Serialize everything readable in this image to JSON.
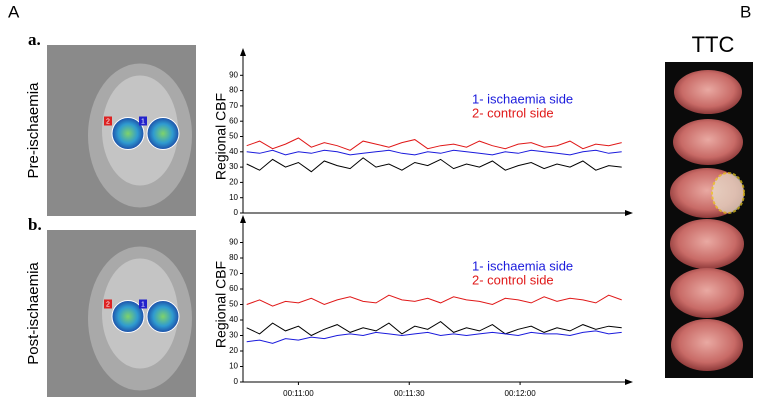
{
  "panel_labels": [
    "A",
    "B"
  ],
  "ttc_label": "TTC",
  "chart_data": [
    {
      "type": "line",
      "label": "a.",
      "image_label": "Pre-ischaemia",
      "roi_labels": [
        "2",
        "1"
      ],
      "ylabel": "Regional CBF",
      "legend": "upper right",
      "xlim": [
        645,
        748.4
      ],
      "ylim": [
        0,
        100
      ],
      "yticks": [
        0,
        10,
        20,
        30,
        40,
        50,
        60,
        70,
        80,
        90
      ],
      "x": [
        646,
        649.5,
        653,
        656.5,
        660,
        663.5,
        667,
        670.5,
        674,
        677.5,
        681,
        684.5,
        688,
        691.5,
        695,
        698.5,
        702,
        705.5,
        709,
        712.5,
        716,
        719.5,
        723,
        726.5,
        730,
        733.5,
        737,
        740.5,
        744,
        747.5
      ],
      "series": [
        {
          "color": "#000000",
          "values": [
            32,
            28,
            35,
            30,
            33,
            27,
            34,
            31,
            29,
            36,
            30,
            32,
            28,
            33,
            31,
            35,
            29,
            32,
            30,
            34,
            28,
            31,
            33,
            29,
            32,
            30,
            34,
            28,
            31,
            30
          ]
        },
        {
          "name": "1- ischaemia side",
          "color": "#1a1adc",
          "values": [
            40,
            39,
            41,
            38,
            40,
            39,
            41,
            40,
            38,
            39,
            40,
            41,
            39,
            38,
            40,
            39,
            41,
            40,
            39,
            38,
            40,
            39,
            41,
            40,
            39,
            38,
            40,
            41,
            39,
            40
          ]
        },
        {
          "name": "2- control side",
          "color": "#e01818",
          "values": [
            44,
            47,
            42,
            45,
            49,
            43,
            46,
            44,
            41,
            47,
            45,
            43,
            46,
            48,
            42,
            44,
            45,
            43,
            47,
            44,
            42,
            45,
            46,
            43,
            44,
            47,
            42,
            45,
            44,
            46
          ]
        }
      ]
    },
    {
      "type": "line",
      "label": "b.",
      "image_label": "Post-ischaemia",
      "roi_labels": [
        "2",
        "1"
      ],
      "ylabel": "Regional CBF",
      "legend": "upper right",
      "xlim": [
        645,
        748.4
      ],
      "ylim": [
        0,
        100
      ],
      "yticks": [
        0,
        10,
        20,
        30,
        40,
        50,
        60,
        70,
        80,
        90
      ],
      "xticks": [
        {
          "value": 660,
          "label": "00:11:00"
        },
        {
          "value": 690,
          "label": "00:11:30"
        },
        {
          "value": 720,
          "label": "00:12:00"
        }
      ],
      "x": [
        646,
        649.5,
        653,
        656.5,
        660,
        663.5,
        667,
        670.5,
        674,
        677.5,
        681,
        684.5,
        688,
        691.5,
        695,
        698.5,
        702,
        705.5,
        709,
        712.5,
        716,
        719.5,
        723,
        726.5,
        730,
        733.5,
        737,
        740.5,
        744,
        747.5
      ],
      "series": [
        {
          "color": "#000000",
          "values": [
            35,
            31,
            38,
            33,
            36,
            30,
            34,
            37,
            32,
            35,
            33,
            38,
            31,
            36,
            34,
            39,
            32,
            35,
            33,
            37,
            31,
            34,
            36,
            32,
            35,
            33,
            37,
            34,
            36,
            35
          ]
        },
        {
          "name": "1- ischaemia side",
          "color": "#1a1adc",
          "values": [
            26,
            27,
            25,
            28,
            27,
            29,
            28,
            30,
            31,
            30,
            32,
            31,
            30,
            31,
            32,
            30,
            31,
            30,
            31,
            32,
            31,
            30,
            32,
            31,
            31,
            30,
            32,
            33,
            31,
            32
          ]
        },
        {
          "name": "2- control side",
          "color": "#e01818",
          "values": [
            50,
            53,
            49,
            52,
            51,
            54,
            50,
            53,
            55,
            52,
            51,
            56,
            53,
            52,
            54,
            51,
            55,
            53,
            52,
            50,
            54,
            53,
            51,
            55,
            52,
            54,
            53,
            51,
            56,
            53
          ]
        }
      ]
    }
  ]
}
